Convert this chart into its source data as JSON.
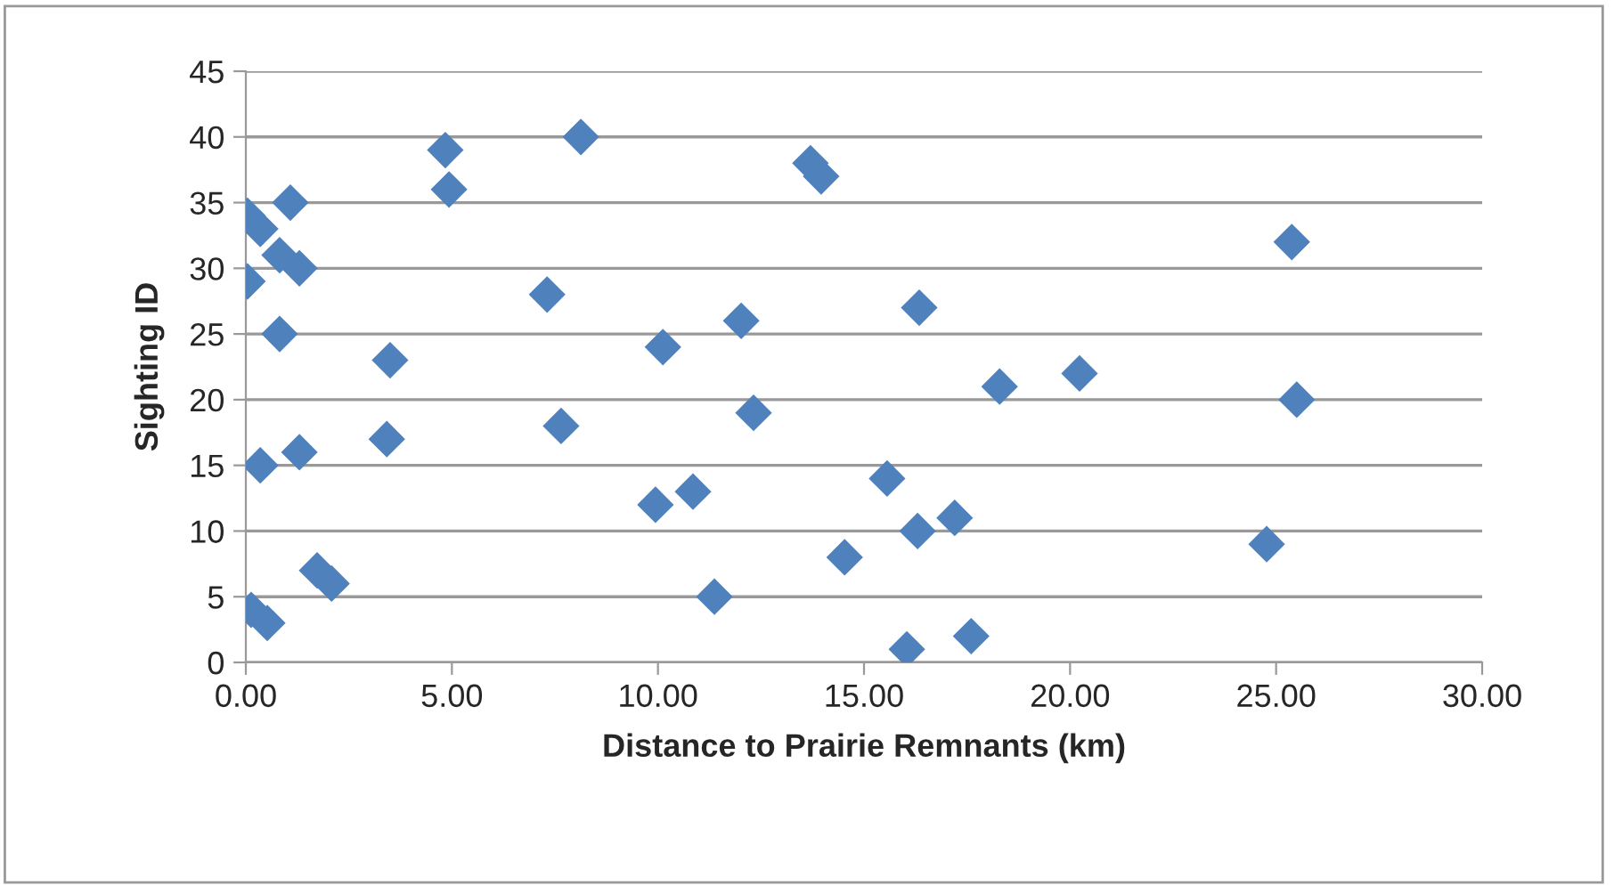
{
  "chart_data": {
    "type": "scatter",
    "xlabel": "Distance to Prairie Remnants (km)",
    "ylabel": "Sighting ID",
    "series": [
      {
        "color": "#4f81bd",
        "x": [
          16.04,
          17.6,
          0.52,
          0.13,
          11.37,
          2.08,
          1.73,
          14.53,
          24.77,
          16.3,
          17.2,
          9.94,
          10.85,
          15.56,
          0.35,
          1.3,
          3.42,
          7.65,
          12.32,
          25.5,
          18.29,
          20.23,
          3.5,
          10.12,
          0.82,
          12.02,
          16.34,
          7.31,
          0.04,
          1.3,
          0.82,
          25.38,
          0.35,
          0.04,
          1.08,
          4.93,
          13.96,
          13.7,
          4.84,
          8.13
        ],
        "values": [
          1,
          2,
          3,
          4,
          5,
          6,
          7,
          8,
          9,
          10,
          11,
          12,
          13,
          14,
          15,
          16,
          17,
          18,
          19,
          20,
          21,
          22,
          23,
          24,
          25,
          26,
          27,
          28,
          29,
          30,
          31,
          32,
          33,
          34,
          35,
          36,
          37,
          38,
          39,
          40
        ]
      }
    ],
    "marker": "diamond",
    "grid": "y",
    "xlim": [
      0,
      30
    ],
    "xticks": [
      {
        "value": 0,
        "label": "0.00"
      },
      {
        "value": 5,
        "label": "5.00"
      },
      {
        "value": 10,
        "label": "10.00"
      },
      {
        "value": 15,
        "label": "15.00"
      },
      {
        "value": 20,
        "label": "20.00"
      },
      {
        "value": 25,
        "label": "25.00"
      },
      {
        "value": 30,
        "label": "30.00"
      }
    ],
    "ylim": [
      0,
      45
    ],
    "yticks": [
      0,
      5,
      10,
      15,
      20,
      25,
      30,
      35,
      40,
      45
    ]
  }
}
